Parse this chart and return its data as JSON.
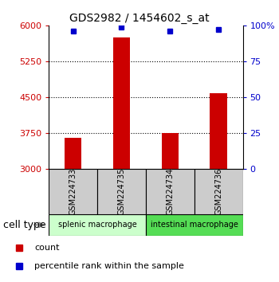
{
  "title": "GDS2982 / 1454602_s_at",
  "samples": [
    "GSM224733",
    "GSM224735",
    "GSM224734",
    "GSM224736"
  ],
  "count_values": [
    3650,
    5750,
    3760,
    4580
  ],
  "percentile_values": [
    96,
    99,
    96,
    97
  ],
  "ymin": 3000,
  "ymax": 6000,
  "yticks_left": [
    3000,
    3750,
    4500,
    5250,
    6000
  ],
  "yticks_right": [
    0,
    25,
    50,
    75,
    100
  ],
  "left_tick_color": "#cc0000",
  "right_tick_color": "#0000cc",
  "bar_color": "#cc0000",
  "dot_color": "#0000cc",
  "groups": [
    {
      "label": "splenic macrophage",
      "indices": [
        0,
        1
      ],
      "color": "#ccffcc"
    },
    {
      "label": "intestinal macrophage",
      "indices": [
        2,
        3
      ],
      "color": "#55dd55"
    }
  ],
  "cell_type_label": "cell type",
  "legend_count_label": "count",
  "legend_pct_label": "percentile rank within the sample",
  "bar_width": 0.35,
  "sample_box_color": "#cccccc"
}
